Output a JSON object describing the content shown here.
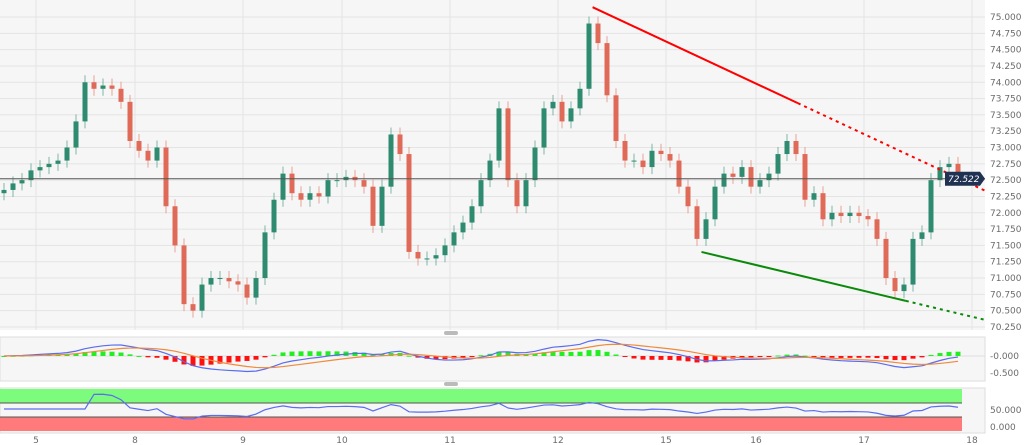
{
  "chart_data": {
    "type": "candlestick",
    "title": "",
    "xlabel": "",
    "ylabel": "",
    "ylim": [
      70.2,
      75.2
    ],
    "grid": true,
    "y_ticks": [
      "75.000",
      "74.750",
      "74.500",
      "74.250",
      "74.000",
      "73.750",
      "73.500",
      "73.250",
      "73.000",
      "72.750",
      "72.500",
      "72.250",
      "72.000",
      "71.750",
      "71.500",
      "71.250",
      "71.000",
      "70.750",
      "70.500",
      "70.250"
    ],
    "x_ticks": [
      {
        "label": "5",
        "index": 2
      },
      {
        "label": "8",
        "index": 13
      },
      {
        "label": "9",
        "index": 25
      },
      {
        "label": "10",
        "index": 36
      },
      {
        "label": "11",
        "index": 48
      },
      {
        "label": "12",
        "index": 60
      },
      {
        "label": "15",
        "index": 72
      },
      {
        "label": "16",
        "index": 82
      },
      {
        "label": "17",
        "index": 94
      },
      {
        "label": "18",
        "index": 106
      }
    ],
    "open": [
      72.3,
      72.35,
      72.45,
      72.5,
      72.65,
      72.7,
      72.75,
      72.8,
      73.0,
      73.4,
      74.0,
      73.9,
      73.95,
      73.9,
      73.7,
      73.1,
      72.95,
      72.8,
      73.0,
      72.1,
      71.5,
      70.6,
      70.5,
      70.9,
      71.0,
      71.0,
      70.95,
      70.9,
      70.7,
      71.0,
      71.7,
      72.2,
      72.6,
      72.3,
      72.2,
      72.3,
      72.25,
      72.5,
      72.5,
      72.55,
      72.5,
      72.4,
      71.8,
      72.4,
      73.2,
      72.9,
      71.4,
      71.3,
      71.3,
      71.35,
      71.5,
      71.7,
      71.85,
      72.1,
      72.5,
      72.8,
      73.6,
      72.5,
      72.1,
      72.5,
      73.0,
      73.6,
      73.7,
      73.4,
      73.6,
      73.9,
      74.9,
      74.6,
      73.8,
      73.1,
      72.8,
      72.8,
      72.7,
      72.95,
      72.9,
      72.8,
      72.4,
      72.1,
      71.6,
      71.9,
      72.4,
      72.6,
      72.55,
      72.7,
      72.4,
      72.5,
      72.6,
      72.9,
      73.1,
      72.9,
      72.2,
      72.3,
      71.9,
      72.0,
      71.95,
      72.0,
      71.95,
      71.9,
      71.6,
      71.0,
      70.8,
      70.9,
      71.6,
      71.7,
      72.5,
      72.7,
      72.75
    ],
    "close": [
      72.35,
      72.45,
      72.5,
      72.65,
      72.7,
      72.75,
      72.8,
      73.0,
      73.4,
      74.0,
      73.9,
      73.95,
      73.9,
      73.7,
      73.1,
      72.95,
      72.8,
      73.0,
      72.1,
      71.5,
      70.6,
      70.5,
      70.9,
      71.0,
      71.0,
      70.95,
      70.9,
      70.7,
      71.0,
      71.7,
      72.2,
      72.6,
      72.3,
      72.2,
      72.3,
      72.25,
      72.5,
      72.5,
      72.55,
      72.5,
      72.4,
      71.8,
      72.4,
      73.2,
      72.9,
      71.4,
      71.3,
      71.3,
      71.35,
      71.5,
      71.7,
      71.85,
      72.1,
      72.5,
      72.8,
      73.6,
      72.5,
      72.1,
      72.5,
      73.0,
      73.6,
      73.7,
      73.4,
      73.6,
      73.9,
      74.9,
      74.6,
      73.8,
      73.1,
      72.8,
      72.8,
      72.7,
      72.95,
      72.9,
      72.8,
      72.4,
      72.1,
      71.6,
      71.9,
      72.4,
      72.6,
      72.55,
      72.7,
      72.4,
      72.5,
      72.6,
      72.9,
      73.1,
      72.9,
      72.2,
      72.3,
      71.9,
      72.0,
      71.95,
      72.0,
      71.95,
      71.9,
      71.6,
      71.0,
      70.8,
      70.9,
      71.6,
      71.7,
      72.5,
      72.7,
      72.75,
      72.52
    ],
    "last_price": "72.522",
    "trendlines": [
      {
        "name": "resistance",
        "color": "#ff0000",
        "start": [
          65.4,
          75.15
        ],
        "end": [
          88.2,
          73.68
        ]
      },
      {
        "name": "support",
        "color": "#0a8a0a",
        "start": [
          77.5,
          71.4
        ],
        "end": [
          100.2,
          70.65
        ]
      }
    ],
    "colors": {
      "bull": "#2e8b6f",
      "bear": "#e06a58",
      "macd": "#5a6cf0",
      "signal": "#f08a3c",
      "hist_pos": "#22ee22",
      "hist_neg": "#ff1010",
      "overbought": "#7dfb7d",
      "oversold": "#ff7b7b",
      "price_label": "#1f3252"
    },
    "macd_panel": {
      "ticks": [
        "-0.000",
        "-0.500"
      ]
    },
    "rsi_panel": {
      "ticks": [
        "50.000",
        "0.000"
      ]
    }
  }
}
